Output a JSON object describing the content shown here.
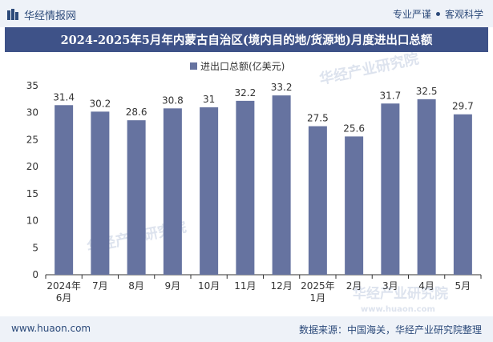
{
  "header": {
    "brand_name": "华经情报网",
    "slogan_left": "专业严谨",
    "slogan_right": "客观科学"
  },
  "title": "2024-2025年5月年内蒙古自治区(境内目的地/货源地)月度进出口总额",
  "footer": {
    "website": "www.huaon.com",
    "source": "数据来源：中国海关，华经产业研究院整理"
  },
  "watermarks": {
    "name_cn": "华经产业研究院",
    "site": "www.huaon.com"
  },
  "colors": {
    "bar": "#6673a0",
    "title_bg": "#3e5288",
    "axis": "#333333"
  },
  "chart_data": {
    "type": "bar",
    "title": "2024-2025年5月年内蒙古自治区(境内目的地/货源地)月度进出口总额",
    "legend": "进出口总额(亿美元)",
    "legend_position": "top-center",
    "categories": [
      [
        "2024年",
        "6月"
      ],
      [
        "7月"
      ],
      [
        "8月"
      ],
      [
        "9月"
      ],
      [
        "10月"
      ],
      [
        "11月"
      ],
      [
        "12月"
      ],
      [
        "2025年",
        "1月"
      ],
      [
        "2月"
      ],
      [
        "3月"
      ],
      [
        "4月"
      ],
      [
        "5月"
      ]
    ],
    "values": [
      31.4,
      30.2,
      28.6,
      30.8,
      31,
      32.2,
      33.2,
      27.5,
      25.6,
      31.7,
      32.5,
      29.7
    ],
    "ylim": [
      0,
      35
    ],
    "yticks": [
      0,
      5,
      10,
      15,
      20,
      25,
      30,
      35
    ],
    "xlabel": "",
    "ylabel": ""
  }
}
